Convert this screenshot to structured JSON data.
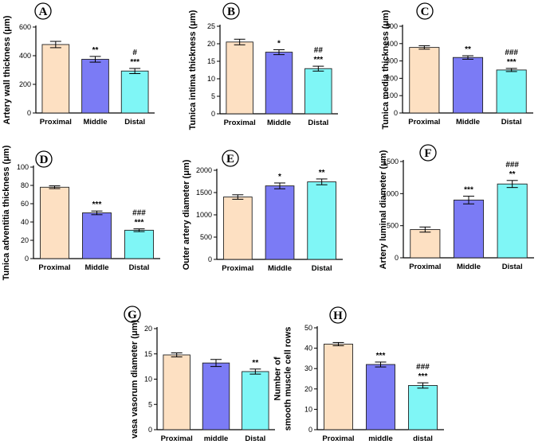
{
  "chart_data": [
    {
      "panel": "A",
      "type": "bar",
      "ylabel": "Artery wall thickness (μm)",
      "categories": [
        "Proximal",
        "Middle",
        "Distal"
      ],
      "values": [
        478,
        375,
        293
      ],
      "errors": [
        22,
        20,
        18
      ],
      "annotations": [
        [],
        [
          "**"
        ],
        [
          "***",
          "#"
        ]
      ],
      "ylim": [
        0,
        600
      ],
      "yticks": [
        0,
        200,
        400,
        600
      ],
      "colors": [
        "#fde0c2",
        "#7b7bf5",
        "#7ff6f6"
      ]
    },
    {
      "panel": "B",
      "type": "bar",
      "ylabel": "Tunica intima thickness (μm)",
      "categories": [
        "Proximal",
        "Middle",
        "Distal"
      ],
      "values": [
        20.5,
        17.6,
        12.9
      ],
      "errors": [
        0.8,
        0.7,
        0.7
      ],
      "annotations": [
        [],
        [
          "*"
        ],
        [
          "***",
          "##"
        ]
      ],
      "ylim": [
        0,
        25
      ],
      "yticks": [
        0,
        5,
        10,
        15,
        20,
        25
      ],
      "colors": [
        "#fde0c2",
        "#7b7bf5",
        "#7ff6f6"
      ]
    },
    {
      "panel": "C",
      "type": "bar",
      "ylabel": "Tunica media thickness (μm)",
      "categories": [
        "Proximal",
        "Middle",
        "Distal"
      ],
      "values": [
        378,
        320,
        248
      ],
      "errors": [
        10,
        10,
        9
      ],
      "annotations": [
        [],
        [
          "**"
        ],
        [
          "***",
          "###"
        ]
      ],
      "ylim": [
        0,
        500
      ],
      "yticks": [
        0,
        100,
        200,
        300,
        400,
        500
      ],
      "colors": [
        "#fde0c2",
        "#7b7bf5",
        "#7ff6f6"
      ]
    },
    {
      "panel": "D",
      "type": "bar",
      "ylabel": "Tunica adventitia thickness (μm)",
      "categories": [
        "Proximal",
        "Middle",
        "Distal"
      ],
      "values": [
        78,
        50,
        31
      ],
      "errors": [
        1.5,
        2,
        1.5
      ],
      "annotations": [
        [],
        [
          "***"
        ],
        [
          "***",
          "###"
        ]
      ],
      "ylim": [
        0,
        100
      ],
      "yticks": [
        0,
        20,
        40,
        60,
        80,
        100
      ],
      "colors": [
        "#fde0c2",
        "#7b7bf5",
        "#7ff6f6"
      ]
    },
    {
      "panel": "E",
      "type": "bar",
      "ylabel": "Outer artery diameter (μm)",
      "categories": [
        "Proximal",
        "Middle",
        "Distal"
      ],
      "values": [
        1400,
        1650,
        1740
      ],
      "errors": [
        50,
        65,
        65
      ],
      "annotations": [
        [],
        [
          "*"
        ],
        [
          "**"
        ]
      ],
      "ylim": [
        0,
        2000
      ],
      "yticks": [
        0,
        500,
        1000,
        1500,
        2000
      ],
      "colors": [
        "#fde0c2",
        "#7b7bf5",
        "#7ff6f6"
      ]
    },
    {
      "panel": "F",
      "type": "bar",
      "ylabel": "Artery luminal diameter (μm)",
      "categories": [
        "Proximal",
        "Middle",
        "Distal"
      ],
      "values": [
        440,
        900,
        1150
      ],
      "errors": [
        40,
        60,
        55
      ],
      "annotations": [
        [],
        [
          "***"
        ],
        [
          "**",
          "###"
        ]
      ],
      "ylim": [
        0,
        1500
      ],
      "yticks": [
        0,
        500,
        1000,
        1500
      ],
      "colors": [
        "#fde0c2",
        "#7b7bf5",
        "#7ff6f6"
      ]
    },
    {
      "panel": "G",
      "type": "bar",
      "ylabel": "vasa vasorum diameter (μm)",
      "categories": [
        "Proximal",
        "middle",
        "Distal"
      ],
      "values": [
        14.8,
        13.2,
        11.5
      ],
      "errors": [
        0.4,
        0.7,
        0.5
      ],
      "annotations": [
        [],
        [],
        [
          "**"
        ]
      ],
      "ylim": [
        0,
        20
      ],
      "yticks": [
        0,
        5,
        10,
        15,
        20
      ],
      "colors": [
        "#fde0c2",
        "#7b7bf5",
        "#7ff6f6"
      ]
    },
    {
      "panel": "H",
      "type": "bar",
      "ylabel": [
        "Number of",
        "smooth muscle cell rows"
      ],
      "categories": [
        "Proximal",
        "middle",
        "distal"
      ],
      "values": [
        42,
        32,
        21.7
      ],
      "errors": [
        0.8,
        1.2,
        1.3
      ],
      "annotations": [
        [],
        [
          "***"
        ],
        [
          "***",
          "###"
        ]
      ],
      "ylim": [
        0,
        50
      ],
      "yticks": [
        0,
        10,
        20,
        30,
        40,
        50
      ],
      "colors": [
        "#fde0c2",
        "#7b7bf5",
        "#7ff6f6"
      ]
    }
  ]
}
